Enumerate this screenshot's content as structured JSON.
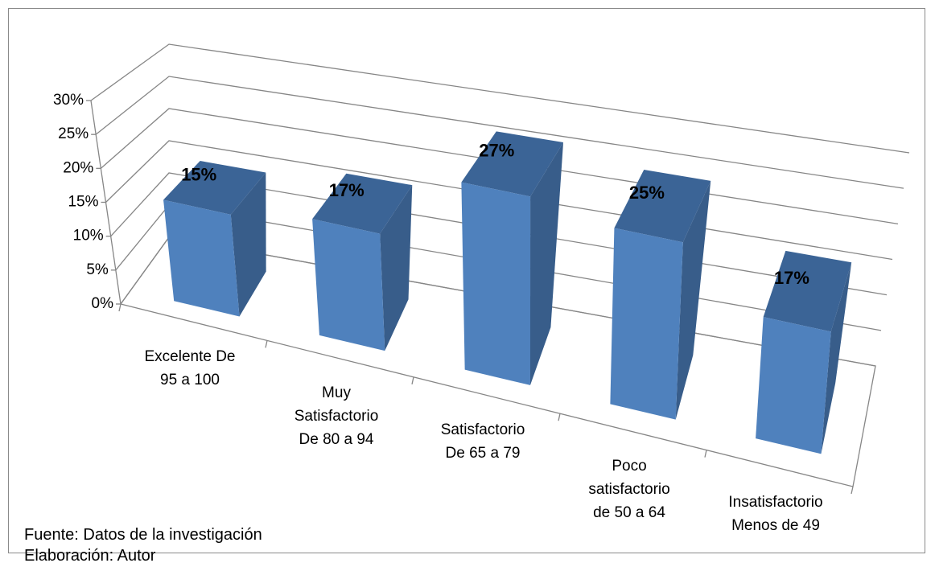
{
  "chart_data": {
    "type": "bar3d",
    "categories": [
      "Excelente De\n95 a 100",
      "Muy\nSatisfactorio\nDe 80 a 94",
      "Satisfactorio\nDe 65 a 79",
      "Poco\nsatisfactorio\nde 50 a 64",
      "Insatisfactorio\nMenos de 49"
    ],
    "values": [
      15,
      17,
      27,
      25,
      17
    ],
    "value_labels": [
      "15%",
      "17%",
      "27%",
      "25%",
      "17%"
    ],
    "color": "#4f81bd",
    "ylim": [
      0,
      30
    ],
    "yticks": [
      {
        "value": 0,
        "label": "0%"
      },
      {
        "value": 5,
        "label": "5%"
      },
      {
        "value": 10,
        "label": "10%"
      },
      {
        "value": 15,
        "label": "15%"
      },
      {
        "value": 20,
        "label": "20%"
      },
      {
        "value": 25,
        "label": "25%"
      },
      {
        "value": 30,
        "label": "30%"
      }
    ],
    "grid": true
  },
  "notes": [
    "Fuente: Datos de la investigación",
    "Elaboración: Autor"
  ]
}
